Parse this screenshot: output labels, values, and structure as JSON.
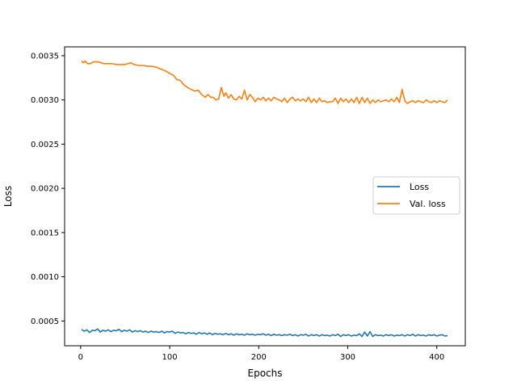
{
  "chart_data": {
    "type": "line",
    "title": "",
    "xlabel": "Epochs",
    "ylabel": "Loss",
    "xlim": [
      -18,
      432
    ],
    "ylim": [
      0.00022,
      0.0036
    ],
    "xticks": [
      0,
      100,
      200,
      300,
      400
    ],
    "xtick_labels": [
      "0",
      "100",
      "200",
      "300",
      "400"
    ],
    "yticks": [
      0.0005,
      0.001,
      0.0015,
      0.002,
      0.0025,
      0.003,
      0.0035
    ],
    "ytick_labels": [
      "0.0005",
      "0.0010",
      "0.0015",
      "0.0020",
      "0.0025",
      "0.0030",
      "0.0035"
    ],
    "grid": false,
    "legend_position": "center-right",
    "series": [
      {
        "name": "Loss",
        "color": "#1f77b4",
        "x": [
          1,
          4,
          7,
          10,
          13,
          16,
          19,
          22,
          25,
          28,
          31,
          34,
          37,
          40,
          43,
          46,
          49,
          52,
          55,
          58,
          61,
          64,
          67,
          70,
          73,
          76,
          79,
          82,
          85,
          88,
          91,
          94,
          97,
          100,
          103,
          106,
          109,
          112,
          115,
          118,
          121,
          124,
          127,
          130,
          133,
          136,
          139,
          142,
          145,
          148,
          151,
          154,
          157,
          160,
          163,
          166,
          169,
          172,
          175,
          178,
          181,
          184,
          187,
          190,
          193,
          196,
          199,
          202,
          205,
          208,
          211,
          214,
          217,
          220,
          223,
          226,
          229,
          232,
          235,
          238,
          241,
          244,
          247,
          250,
          253,
          256,
          259,
          262,
          265,
          268,
          271,
          274,
          277,
          280,
          283,
          286,
          289,
          292,
          295,
          298,
          301,
          304,
          307,
          310,
          313,
          316,
          319,
          322,
          325,
          328,
          331,
          334,
          337,
          340,
          343,
          346,
          349,
          352,
          355,
          358,
          361,
          364,
          367,
          370,
          373,
          376,
          379,
          382,
          385,
          388,
          391,
          394,
          397,
          400,
          403,
          406,
          409,
          412
        ],
        "y": [
          0.000405,
          0.000385,
          0.0004,
          0.00037,
          0.000395,
          0.00039,
          0.00041,
          0.000375,
          0.000395,
          0.000385,
          0.0004,
          0.00038,
          0.000395,
          0.00039,
          0.000405,
          0.00038,
          0.000395,
          0.000385,
          0.0004,
          0.000375,
          0.00039,
          0.00038,
          0.00039,
          0.000375,
          0.000385,
          0.00037,
          0.000385,
          0.000375,
          0.00038,
          0.00037,
          0.000385,
          0.000365,
          0.00038,
          0.000375,
          0.000385,
          0.00036,
          0.000375,
          0.000365,
          0.00037,
          0.000355,
          0.00037,
          0.00036,
          0.000365,
          0.00035,
          0.00037,
          0.000355,
          0.000365,
          0.00035,
          0.000365,
          0.000345,
          0.00036,
          0.00035,
          0.000355,
          0.000345,
          0.00036,
          0.000345,
          0.000355,
          0.00034,
          0.000355,
          0.000345,
          0.00035,
          0.00034,
          0.000355,
          0.000345,
          0.00035,
          0.00034,
          0.00035,
          0.000345,
          0.000355,
          0.00034,
          0.00035,
          0.000335,
          0.00035,
          0.00034,
          0.000345,
          0.000335,
          0.000345,
          0.00034,
          0.00035,
          0.000335,
          0.000345,
          0.00033,
          0.000345,
          0.00034,
          0.00035,
          0.00033,
          0.000345,
          0.000335,
          0.000345,
          0.00033,
          0.000345,
          0.000335,
          0.00034,
          0.00033,
          0.000345,
          0.000335,
          0.00035,
          0.000325,
          0.000345,
          0.000335,
          0.000345,
          0.00033,
          0.00034,
          0.000335,
          0.000355,
          0.000325,
          0.000375,
          0.00033,
          0.00038,
          0.000325,
          0.000345,
          0.000335,
          0.00034,
          0.00033,
          0.000345,
          0.000335,
          0.000345,
          0.00033,
          0.00034,
          0.000335,
          0.000345,
          0.00033,
          0.000345,
          0.000335,
          0.00035,
          0.00033,
          0.000345,
          0.000335,
          0.00034,
          0.00033,
          0.000345,
          0.000335,
          0.000345,
          0.00033,
          0.00034,
          0.000345,
          0.00033,
          0.000335
        ]
      },
      {
        "name": "Val. loss",
        "color": "#ff7f0e",
        "x": [
          1,
          3,
          5,
          8,
          11,
          14,
          17,
          20,
          23,
          26,
          30,
          35,
          40,
          45,
          50,
          53,
          56,
          60,
          65,
          70,
          75,
          80,
          85,
          90,
          95,
          100,
          104,
          108,
          112,
          116,
          120,
          124,
          128,
          132,
          136,
          140,
          143,
          146,
          149,
          152,
          155,
          158,
          161,
          163,
          166,
          169,
          172,
          175,
          178,
          181,
          184,
          187,
          190,
          193,
          196,
          199,
          202,
          205,
          208,
          211,
          214,
          217,
          220,
          223,
          226,
          229,
          232,
          235,
          238,
          241,
          244,
          247,
          250,
          253,
          256,
          259,
          262,
          265,
          268,
          271,
          274,
          277,
          280,
          283,
          286,
          289,
          292,
          295,
          298,
          301,
          304,
          307,
          310,
          313,
          316,
          319,
          322,
          325,
          328,
          331,
          334,
          337,
          340,
          343,
          346,
          349,
          352,
          355,
          358,
          361,
          364,
          367,
          370,
          373,
          376,
          379,
          382,
          385,
          388,
          391,
          394,
          397,
          400,
          403,
          406,
          409,
          412
        ],
        "y": [
          0.00344,
          0.00342,
          0.00344,
          0.00341,
          0.00341,
          0.00343,
          0.00343,
          0.00343,
          0.00342,
          0.00341,
          0.00341,
          0.00341,
          0.0034,
          0.0034,
          0.0034,
          0.00341,
          0.00342,
          0.0034,
          0.00339,
          0.00339,
          0.00338,
          0.00338,
          0.00337,
          0.00335,
          0.00333,
          0.0033,
          0.00328,
          0.00323,
          0.00322,
          0.00317,
          0.00314,
          0.00312,
          0.0031,
          0.00311,
          0.00306,
          0.00303,
          0.00306,
          0.00303,
          0.00303,
          0.003,
          0.00301,
          0.00314,
          0.00304,
          0.00308,
          0.00302,
          0.00306,
          0.00301,
          0.003,
          0.00304,
          0.00301,
          0.00311,
          0.003,
          0.00306,
          0.00303,
          0.00298,
          0.00302,
          0.003,
          0.00303,
          0.00299,
          0.00302,
          0.00299,
          0.00303,
          0.00301,
          0.003,
          0.00298,
          0.00302,
          0.00297,
          0.00301,
          0.00303,
          0.00299,
          0.00301,
          0.00299,
          0.00301,
          0.00298,
          0.00303,
          0.00297,
          0.00301,
          0.00297,
          0.00302,
          0.00298,
          0.00299,
          0.00297,
          0.00298,
          0.00298,
          0.00302,
          0.00296,
          0.00302,
          0.00298,
          0.00301,
          0.00297,
          0.00301,
          0.00297,
          0.00303,
          0.00296,
          0.00303,
          0.00297,
          0.00302,
          0.00296,
          0.003,
          0.00297,
          0.003,
          0.00298,
          0.00299,
          0.003,
          0.00298,
          0.00301,
          0.00298,
          0.00303,
          0.00297,
          0.00312,
          0.00299,
          0.00296,
          0.00298,
          0.00299,
          0.00297,
          0.00299,
          0.00298,
          0.00297,
          0.003,
          0.00298,
          0.00297,
          0.00299,
          0.00297,
          0.00299,
          0.00298,
          0.00297,
          0.003
        ]
      }
    ]
  }
}
